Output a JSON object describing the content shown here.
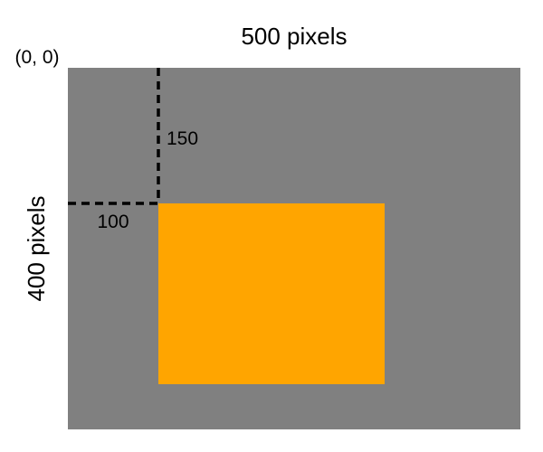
{
  "labels": {
    "width": "500 pixels",
    "height": "400 pixels",
    "origin": "(0, 0)",
    "x_offset": "100",
    "y_offset": "150"
  },
  "colors": {
    "canvas": "#808080",
    "rectangle": "#FFA500",
    "guide": "#000000",
    "background": "#FFFFFF"
  }
}
